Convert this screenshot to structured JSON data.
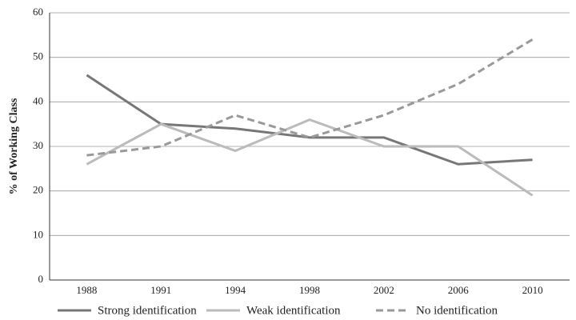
{
  "chart_data": {
    "type": "line",
    "y_label": "% of Working Class",
    "categories": [
      "1988",
      "1991",
      "1994",
      "1998",
      "2002",
      "2006",
      "2010"
    ],
    "series": [
      {
        "name": "Strong identification",
        "color": "#777777",
        "style": "solid",
        "values": [
          46,
          35,
          34,
          32,
          32,
          26,
          27
        ]
      },
      {
        "name": "Weak identification",
        "color": "#bbbbbb",
        "style": "solid",
        "values": [
          26,
          35,
          29,
          36,
          30,
          30,
          19
        ]
      },
      {
        "name": "No identification",
        "color": "#999999",
        "style": "dashed",
        "values": [
          28,
          30,
          37,
          32,
          37,
          44,
          54
        ]
      }
    ],
    "ylim": [
      0,
      60
    ],
    "yticks": [
      0,
      10,
      20,
      30,
      40,
      50,
      60
    ],
    "grid": true
  }
}
